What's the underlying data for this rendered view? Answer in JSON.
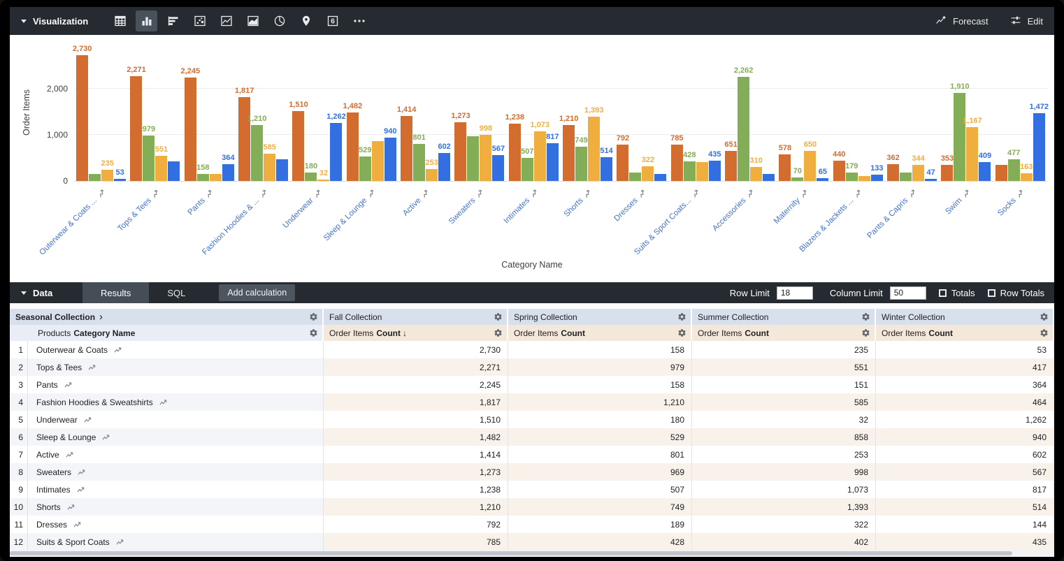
{
  "viz_toolbar": {
    "section_label": "Visualization",
    "icons": [
      {
        "name": "table-chart-icon",
        "active": false
      },
      {
        "name": "bar-chart-icon",
        "active": true
      },
      {
        "name": "row-chart-icon",
        "active": false
      },
      {
        "name": "scatter-chart-icon",
        "active": false
      },
      {
        "name": "line-chart-icon",
        "active": false
      },
      {
        "name": "area-chart-icon",
        "active": false
      },
      {
        "name": "pie-chart-icon",
        "active": false
      },
      {
        "name": "map-pin-icon",
        "active": false
      },
      {
        "name": "single-value-icon",
        "active": false,
        "glyph": "6"
      },
      {
        "name": "more-icon",
        "active": false
      }
    ],
    "forecast_label": "Forecast",
    "edit_label": "Edit"
  },
  "chart_data": {
    "type": "bar",
    "title": "",
    "xlabel": "Category Name",
    "ylabel": "Order Items",
    "ylim": [
      0,
      3000
    ],
    "grid": true,
    "legend": "none",
    "y_ticks": [
      {
        "label": "0",
        "value": 0
      },
      {
        "label": "1,000",
        "value": 1000
      },
      {
        "label": "2,000",
        "value": 2000
      }
    ],
    "categories": [
      "Outerwear & Coats ...",
      "Tops & Tees",
      "Pants",
      "Fashion Hoodies & ...",
      "Underwear",
      "Sleep & Lounge",
      "Active",
      "Sweaters",
      "Intimates",
      "Shorts",
      "Dresses",
      "Suits & Sport Coats...",
      "Accessories",
      "Maternity",
      "Blazers & Jackets ...",
      "Pants & Capris",
      "Swim",
      "Socks"
    ],
    "series": [
      {
        "name": "Fall Collection",
        "color": "#D26C2F",
        "values": [
          2730,
          2271,
          2245,
          1817,
          1510,
          1482,
          1414,
          1273,
          1238,
          1210,
          792,
          785,
          651,
          578,
          440,
          362,
          353,
          345
        ],
        "labels_shown": [
          1,
          1,
          1,
          1,
          1,
          1,
          1,
          1,
          1,
          1,
          1,
          1,
          1,
          1,
          1,
          1,
          1,
          0
        ]
      },
      {
        "name": "Spring Collection",
        "color": "#84AD58",
        "values": [
          158,
          979,
          158,
          1210,
          180,
          529,
          801,
          969,
          507,
          749,
          189,
          428,
          2262,
          70,
          179,
          185,
          1910,
          477
        ],
        "labels_shown": [
          0,
          1,
          1,
          1,
          1,
          1,
          1,
          0,
          1,
          1,
          0,
          1,
          1,
          1,
          1,
          0,
          1,
          1
        ]
      },
      {
        "name": "Summer Collection",
        "color": "#F0AE3E",
        "values": [
          235,
          551,
          151,
          585,
          32,
          858,
          253,
          998,
          1073,
          1393,
          322,
          402,
          310,
          650,
          110,
          344,
          1167,
          163
        ],
        "labels_shown": [
          1,
          1,
          0,
          1,
          1,
          0,
          1,
          1,
          1,
          1,
          1,
          0,
          1,
          1,
          0,
          1,
          1,
          1
        ]
      },
      {
        "name": "Winter Collection",
        "color": "#336FE0",
        "values": [
          53,
          417,
          364,
          464,
          1262,
          940,
          602,
          567,
          817,
          514,
          144,
          435,
          155,
          65,
          133,
          47,
          409,
          1472
        ],
        "labels_shown": [
          1,
          0,
          1,
          0,
          1,
          1,
          1,
          1,
          1,
          1,
          0,
          1,
          0,
          1,
          1,
          1,
          1,
          1
        ]
      }
    ]
  },
  "data_toolbar": {
    "section_label": "Data",
    "tabs": [
      {
        "label": "Results",
        "active": true
      },
      {
        "label": "SQL",
        "active": false
      }
    ],
    "add_calculation_label": "Add calculation",
    "row_limit_label": "Row Limit",
    "row_limit_value": "18",
    "column_limit_label": "Column Limit",
    "column_limit_value": "50",
    "totals_label": "Totals",
    "row_totals_label": "Row Totals",
    "totals_checked": false,
    "row_totals_checked": false
  },
  "table": {
    "group_headers": [
      {
        "label": "Seasonal Collection",
        "chevron": "›"
      },
      {
        "label": "Fall Collection"
      },
      {
        "label": "Spring Collection"
      },
      {
        "label": "Summer Collection"
      },
      {
        "label": "Winter Collection"
      }
    ],
    "dimension_header": {
      "prefix": "Products",
      "bold": "Category Name"
    },
    "measure_headers": [
      {
        "prefix": "Order Items",
        "bold": "Count",
        "sort": "↓"
      },
      {
        "prefix": "Order Items",
        "bold": "Count",
        "sort": ""
      },
      {
        "prefix": "Order Items",
        "bold": "Count",
        "sort": ""
      },
      {
        "prefix": "Order Items",
        "bold": "Count",
        "sort": ""
      }
    ],
    "rows": [
      {
        "num": 1,
        "name": "Outerwear & Coats",
        "values": [
          2730,
          158,
          235,
          53
        ]
      },
      {
        "num": 2,
        "name": "Tops & Tees",
        "values": [
          2271,
          979,
          551,
          417
        ]
      },
      {
        "num": 3,
        "name": "Pants",
        "values": [
          2245,
          158,
          151,
          364
        ]
      },
      {
        "num": 4,
        "name": "Fashion Hoodies & Sweatshirts",
        "values": [
          1817,
          1210,
          585,
          464
        ]
      },
      {
        "num": 5,
        "name": "Underwear",
        "values": [
          1510,
          180,
          32,
          1262
        ]
      },
      {
        "num": 6,
        "name": "Sleep & Lounge",
        "values": [
          1482,
          529,
          858,
          940
        ]
      },
      {
        "num": 7,
        "name": "Active",
        "values": [
          1414,
          801,
          253,
          602
        ]
      },
      {
        "num": 8,
        "name": "Sweaters",
        "values": [
          1273,
          969,
          998,
          567
        ]
      },
      {
        "num": 9,
        "name": "Intimates",
        "values": [
          1238,
          507,
          1073,
          817
        ]
      },
      {
        "num": 10,
        "name": "Shorts",
        "values": [
          1210,
          749,
          1393,
          514
        ]
      },
      {
        "num": 11,
        "name": "Dresses",
        "values": [
          792,
          189,
          322,
          144
        ]
      },
      {
        "num": 12,
        "name": "Suits & Sport Coats",
        "values": [
          785,
          428,
          402,
          435
        ]
      }
    ]
  },
  "colors": {
    "toolbar_bg": "#262B31",
    "fall": "#D26C2F",
    "spring": "#84AD58",
    "summer": "#F0AE3E",
    "winter": "#336FE0",
    "axis_label": "#4273CB",
    "group_header_bg": "#D8E0EE",
    "dim_header_bg": "#E9EDF6",
    "measure_header_bg": "#F3E8D9"
  }
}
